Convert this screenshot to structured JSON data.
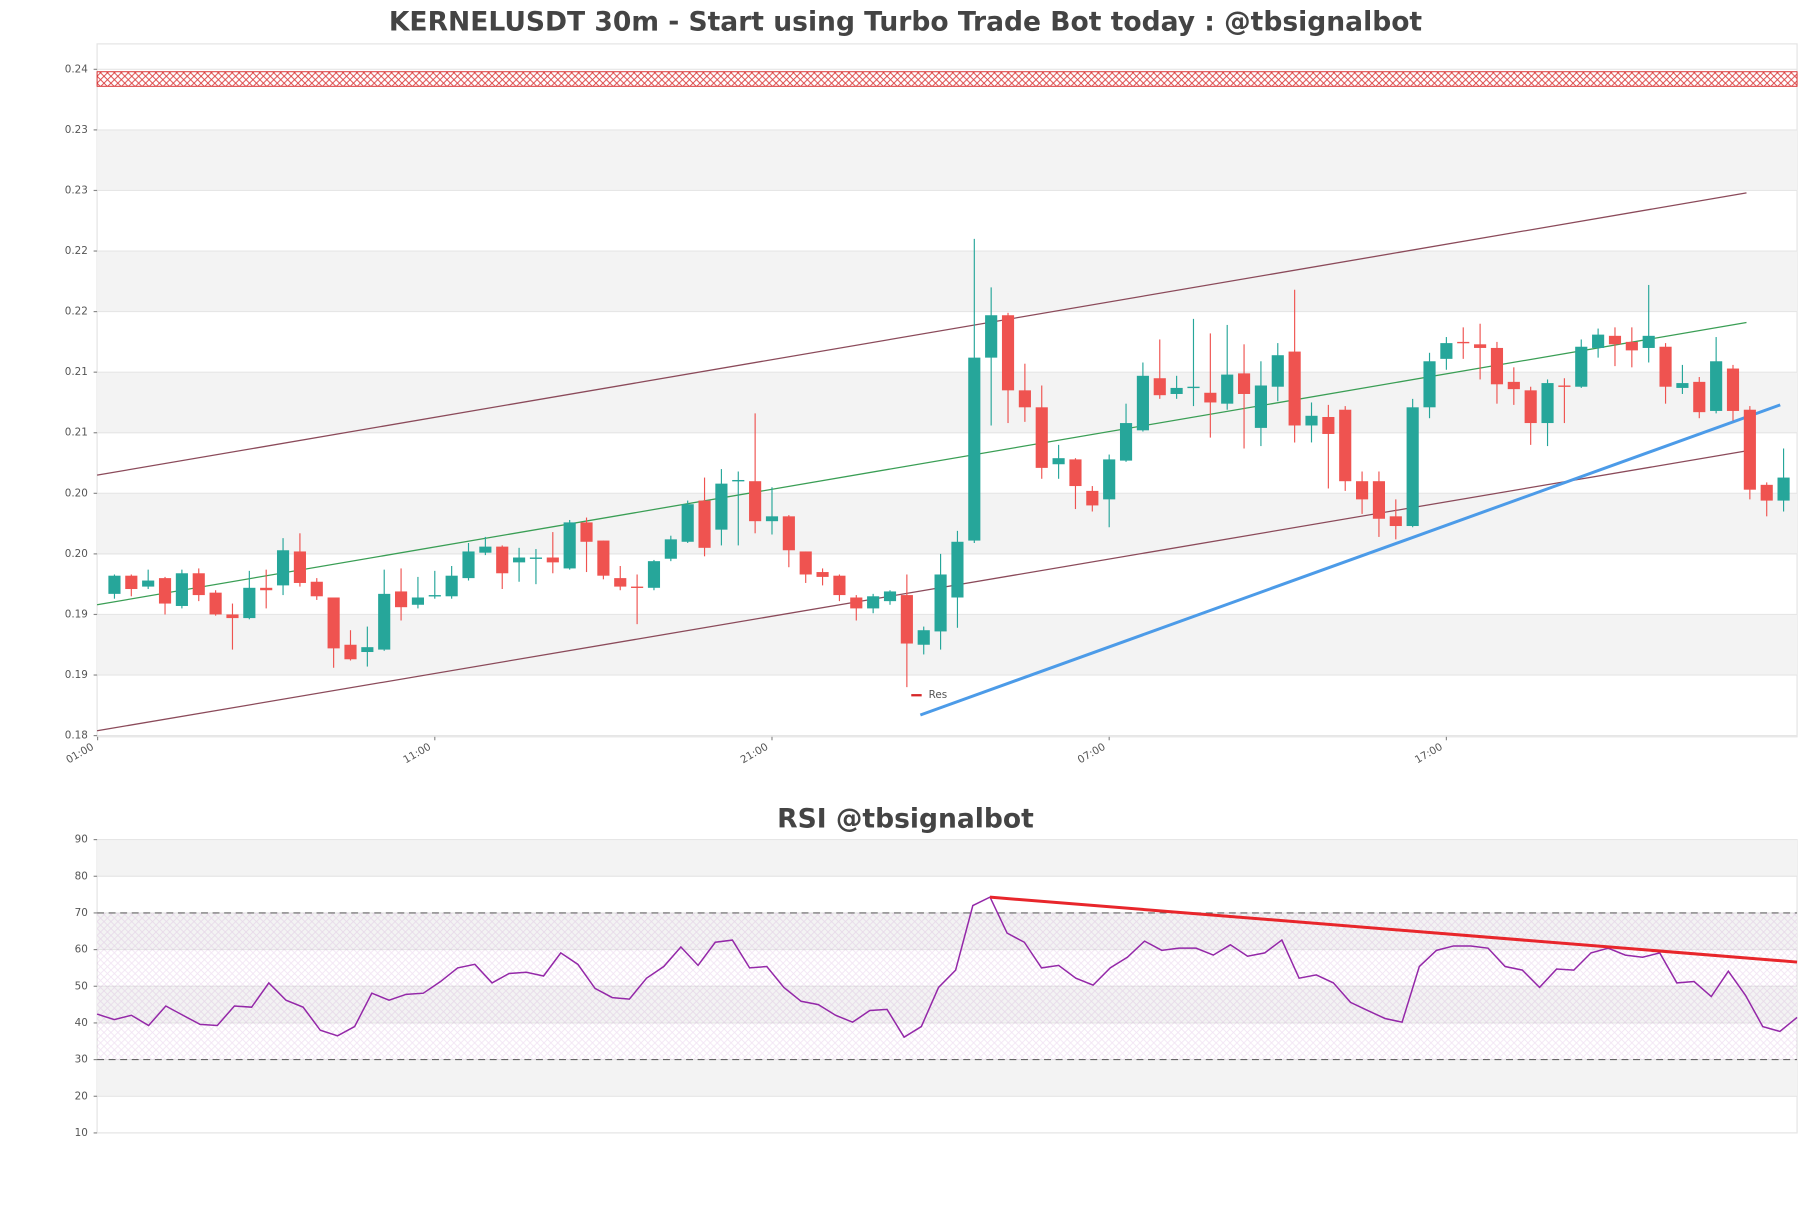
{
  "chart_data": [
    {
      "type": "candlestick",
      "title": "KERNELUSDT 30m - Start using Turbo Trade Bot today : @tbsignalbot",
      "up_color": "#26a69a",
      "down_color": "#ef5350",
      "xlim": [
        -1.03,
        99.8
      ],
      "xticks": [
        {
          "value": -1,
          "label": "01:00"
        },
        {
          "value": 19,
          "label": "11:00"
        },
        {
          "value": 39,
          "label": "21:00"
        },
        {
          "value": 59,
          "label": "07:00"
        },
        {
          "value": 79,
          "label": "17:00"
        }
      ],
      "ylim": [
        0.1839,
        0.2411
      ],
      "yticks": [
        {
          "value": 0.184,
          "label": "0.18"
        },
        {
          "value": 0.189,
          "label": "0.19"
        },
        {
          "value": 0.194,
          "label": "0.19"
        },
        {
          "value": 0.199,
          "label": "0.20"
        },
        {
          "value": 0.204,
          "label": "0.20"
        },
        {
          "value": 0.209,
          "label": "0.21"
        },
        {
          "value": 0.214,
          "label": "0.21"
        },
        {
          "value": 0.219,
          "label": "0.22"
        },
        {
          "value": 0.224,
          "label": "0.22"
        },
        {
          "value": 0.229,
          "label": "0.23"
        },
        {
          "value": 0.234,
          "label": "0.23"
        },
        {
          "value": 0.239,
          "label": "0.24"
        }
      ],
      "grid": true,
      "legend": "lower center",
      "open": [
        0.1957,
        0.1972,
        0.1963,
        0.197,
        0.1947,
        0.1974,
        0.1958,
        0.194,
        0.1937,
        0.1962,
        0.1964,
        0.1992,
        0.1967,
        0.1954,
        0.1915,
        0.1909,
        0.1911,
        0.1959,
        0.1948,
        0.1955,
        0.1955,
        0.197,
        0.1991,
        0.1996,
        0.1983,
        0.1986,
        0.1987,
        0.1978,
        0.2016,
        0.2001,
        0.197,
        0.1963,
        0.1962,
        0.1986,
        0.2,
        0.2034,
        0.201,
        0.205,
        0.205,
        0.2017,
        0.2021,
        0.1992,
        0.1975,
        0.1972,
        0.1954,
        0.1945,
        0.1951,
        0.1956,
        0.1915,
        0.1926,
        0.1954,
        0.2001,
        0.2152,
        0.2187,
        0.2125,
        0.2111,
        0.2064,
        0.2068,
        0.2042,
        0.2035,
        0.2067,
        0.2092,
        0.2135,
        0.2122,
        0.2127,
        0.2123,
        0.2114,
        0.2139,
        0.2094,
        0.2128,
        0.2157,
        0.2096,
        0.2103,
        0.2109,
        0.205,
        0.205,
        0.2021,
        0.2013,
        0.2111,
        0.2151,
        0.2165,
        0.2163,
        0.216,
        0.2132,
        0.2125,
        0.2098,
        0.2129,
        0.2128,
        0.216,
        0.217,
        0.2165,
        0.216,
        0.2161,
        0.2127,
        0.2132,
        0.2108,
        0.2143,
        0.2109,
        0.2047,
        0.2034
      ],
      "high": [
        0.1973,
        0.1973,
        0.1977,
        0.1971,
        0.1977,
        0.1978,
        0.196,
        0.1949,
        0.1976,
        0.1977,
        0.2003,
        0.2007,
        0.197,
        0.1954,
        0.1927,
        0.193,
        0.1977,
        0.1978,
        0.1971,
        0.1976,
        0.198,
        0.1999,
        0.2004,
        0.1997,
        0.1995,
        0.1994,
        0.2008,
        0.2018,
        0.202,
        0.2001,
        0.198,
        0.1973,
        0.1985,
        0.2005,
        0.2034,
        0.2053,
        0.206,
        0.2058,
        0.2106,
        0.2045,
        0.2022,
        0.1992,
        0.1978,
        0.1973,
        0.1956,
        0.1957,
        0.196,
        0.1973,
        0.193,
        0.199,
        0.2009,
        0.225,
        0.221,
        0.2189,
        0.2147,
        0.2129,
        0.208,
        0.2069,
        0.2046,
        0.2072,
        0.2114,
        0.2148,
        0.2167,
        0.2137,
        0.2184,
        0.2172,
        0.2179,
        0.2163,
        0.2149,
        0.2164,
        0.2208,
        0.2115,
        0.2113,
        0.2112,
        0.2058,
        0.2058,
        0.2035,
        0.2118,
        0.2156,
        0.2169,
        0.2177,
        0.218,
        0.2165,
        0.2144,
        0.2128,
        0.2134,
        0.2135,
        0.2167,
        0.2176,
        0.2177,
        0.2177,
        0.2212,
        0.2164,
        0.2146,
        0.2136,
        0.2169,
        0.2146,
        0.2112,
        0.2049,
        0.2077
      ],
      "low": [
        0.1953,
        0.1955,
        0.1961,
        0.194,
        0.1945,
        0.1951,
        0.1939,
        0.1911,
        0.1936,
        0.1945,
        0.1956,
        0.1963,
        0.1952,
        0.1896,
        0.1902,
        0.1897,
        0.191,
        0.1935,
        0.1945,
        0.1953,
        0.1953,
        0.1968,
        0.1989,
        0.1961,
        0.1967,
        0.1965,
        0.1974,
        0.1977,
        0.1975,
        0.1969,
        0.196,
        0.1932,
        0.196,
        0.1984,
        0.1999,
        0.1988,
        0.1997,
        0.1997,
        0.2007,
        0.2006,
        0.1979,
        0.1966,
        0.1964,
        0.1951,
        0.1935,
        0.1941,
        0.1948,
        0.188,
        0.1907,
        0.1911,
        0.1929,
        0.1999,
        0.2096,
        0.2098,
        0.2099,
        0.2052,
        0.2052,
        0.2027,
        0.2025,
        0.2012,
        0.2066,
        0.2091,
        0.2118,
        0.2118,
        0.2112,
        0.2086,
        0.2109,
        0.2077,
        0.2079,
        0.2116,
        0.2082,
        0.2082,
        0.2044,
        0.2042,
        0.2023,
        0.2004,
        0.2002,
        0.2012,
        0.2102,
        0.2142,
        0.2151,
        0.2134,
        0.2114,
        0.2113,
        0.208,
        0.2079,
        0.2098,
        0.2127,
        0.2152,
        0.2145,
        0.2144,
        0.2148,
        0.2114,
        0.2122,
        0.2102,
        0.2106,
        0.21,
        0.2035,
        0.2021,
        0.2025
      ],
      "close": [
        0.1972,
        0.1961,
        0.1968,
        0.1949,
        0.1974,
        0.1956,
        0.194,
        0.1937,
        0.1962,
        0.196,
        0.1993,
        0.1966,
        0.1955,
        0.1912,
        0.1903,
        0.1913,
        0.1957,
        0.1946,
        0.1954,
        0.1956,
        0.1972,
        0.1992,
        0.1996,
        0.1974,
        0.1987,
        0.1987,
        0.1983,
        0.2016,
        0.2,
        0.1972,
        0.1963,
        0.1962,
        0.1984,
        0.2002,
        0.2031,
        0.1995,
        0.2048,
        0.2051,
        0.2017,
        0.2021,
        0.1993,
        0.1973,
        0.1971,
        0.1956,
        0.1945,
        0.1955,
        0.1959,
        0.1916,
        0.1927,
        0.1973,
        0.2,
        0.2152,
        0.2187,
        0.2125,
        0.2111,
        0.2061,
        0.2069,
        0.2046,
        0.203,
        0.2068,
        0.2098,
        0.2137,
        0.2121,
        0.2127,
        0.2128,
        0.2115,
        0.2138,
        0.2122,
        0.2129,
        0.2154,
        0.2096,
        0.2104,
        0.2089,
        0.205,
        0.2035,
        0.2019,
        0.2013,
        0.2111,
        0.2149,
        0.2164,
        0.2164,
        0.216,
        0.213,
        0.2126,
        0.2098,
        0.2131,
        0.2128,
        0.2161,
        0.2171,
        0.2163,
        0.2158,
        0.217,
        0.2128,
        0.2131,
        0.2107,
        0.2149,
        0.2108,
        0.2043,
        0.2034,
        0.2053
      ],
      "zones": [
        {
          "name": "Res",
          "color": "#d62728",
          "values": [
            0.2376,
            0.2388
          ]
        }
      ],
      "trendlines": [
        {
          "color": "#8b4a5a",
          "x": [
            -1.03,
            96.8
          ],
          "y": [
            0.2055,
            0.2288
          ]
        },
        {
          "color": "#8b4a5a",
          "x": [
            -1.03,
            96.8
          ],
          "y": [
            0.1844,
            0.2075
          ]
        },
        {
          "color": "#3a9e55",
          "x": [
            -1.03,
            96.8
          ],
          "y": [
            0.1948,
            0.2181
          ]
        },
        {
          "color": "#4c9be8",
          "x": [
            47.8,
            98.8
          ],
          "y": [
            0.1857,
            0.2113
          ]
        }
      ]
    },
    {
      "type": "line",
      "title": "RSI @tbsignalbot",
      "color": "#9428a8",
      "ylim": [
        10,
        90
      ],
      "yticks": [
        10,
        20,
        30,
        40,
        50,
        60,
        70,
        80,
        90
      ],
      "grid": true,
      "levels": [
        70,
        30
      ],
      "values": [
        42.4,
        40.9,
        42.1,
        39.3,
        44.6,
        42.1,
        39.6,
        39.3,
        44.6,
        44.3,
        50.9,
        46.2,
        44.3,
        38.0,
        36.5,
        39.0,
        48.1,
        46.2,
        47.8,
        48.1,
        51.3,
        55.0,
        56.0,
        50.9,
        53.5,
        53.8,
        52.8,
        59.1,
        56.0,
        49.4,
        46.9,
        46.5,
        52.2,
        55.4,
        60.7,
        55.7,
        62.0,
        62.6,
        55.0,
        55.4,
        49.7,
        45.9,
        45.0,
        42.1,
        40.2,
        43.4,
        43.7,
        36.1,
        39.0,
        49.7,
        54.4,
        72.0,
        74.3,
        64.5,
        62.0,
        55.0,
        55.7,
        52.2,
        50.3,
        55.0,
        57.9,
        62.3,
        59.8,
        60.4,
        60.4,
        58.5,
        61.3,
        58.2,
        59.1,
        62.6,
        52.2,
        53.1,
        50.9,
        45.6,
        43.4,
        41.2,
        40.2,
        55.4,
        59.8,
        61.0,
        61.0,
        60.4,
        55.4,
        54.4,
        49.7,
        54.7,
        54.4,
        59.1,
        60.4,
        58.5,
        57.9,
        59.1,
        50.9,
        51.3,
        47.2,
        54.1,
        47.5,
        39.0,
        37.7,
        41.5
      ],
      "trendlines": [
        {
          "color": "#e8262b",
          "x": [
            52,
            99
          ],
          "y": [
            74.3,
            56.6
          ]
        }
      ]
    }
  ]
}
